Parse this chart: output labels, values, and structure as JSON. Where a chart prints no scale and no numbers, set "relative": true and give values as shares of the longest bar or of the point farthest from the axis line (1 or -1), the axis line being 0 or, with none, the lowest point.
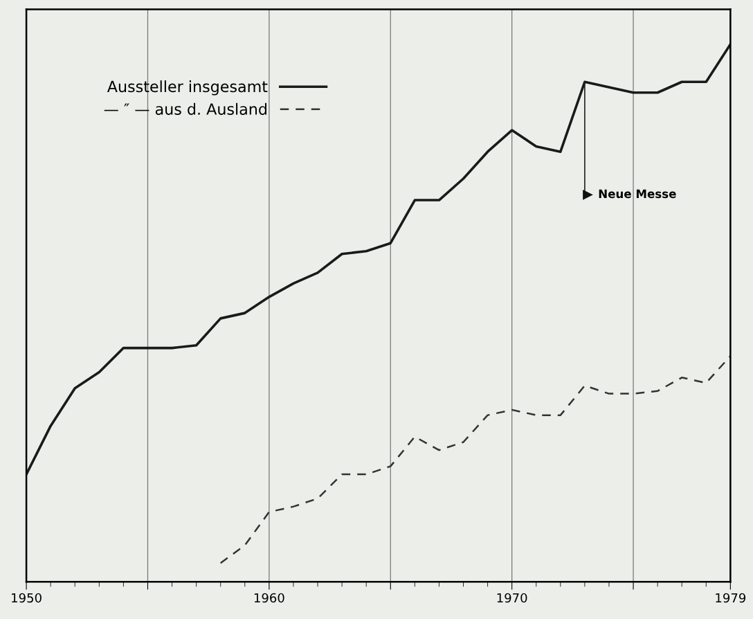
{
  "chart_data": {
    "type": "line",
    "relative": true,
    "x": [
      1950,
      1951,
      1952,
      1953,
      1954,
      1955,
      1956,
      1957,
      1958,
      1959,
      1960,
      1961,
      1962,
      1963,
      1964,
      1965,
      1966,
      1967,
      1968,
      1969,
      1970,
      1971,
      1972,
      1973,
      1974,
      1975,
      1976,
      1977,
      1978,
      1979
    ],
    "series": [
      {
        "name": "Aussteller insgesamt",
        "color": "#1a1a1a",
        "line_style": "solid",
        "values": [
          0.2,
          0.29,
          0.36,
          0.39,
          0.435,
          0.435,
          0.435,
          0.44,
          0.49,
          0.5,
          0.53,
          0.555,
          0.575,
          0.61,
          0.615,
          0.63,
          0.71,
          0.71,
          0.75,
          0.8,
          0.84,
          0.81,
          0.8,
          0.93,
          0.92,
          0.91,
          0.91,
          0.93,
          0.93,
          1.0
        ]
      },
      {
        "name": "— ″ — aus d. Ausland",
        "color": "#333333",
        "line_style": "dashed",
        "values": [
          null,
          null,
          null,
          null,
          null,
          null,
          null,
          null,
          0.035,
          0.068,
          0.13,
          0.14,
          0.155,
          0.2,
          0.2,
          0.215,
          0.27,
          0.245,
          0.26,
          0.31,
          0.32,
          0.31,
          0.31,
          0.365,
          0.35,
          0.35,
          0.355,
          0.38,
          0.37,
          0.42
        ]
      }
    ],
    "xlim": [
      1950,
      1979
    ],
    "xticks": [
      1950,
      {
        "value": 1955,
        "label": null
      },
      1960,
      {
        "value": 1965,
        "label": null
      },
      1970,
      {
        "value": 1975,
        "label": null
      },
      1979
    ],
    "tick_labels": "x",
    "grid": "x",
    "legend": "top left",
    "marker": "none",
    "annotations": [
      {
        "text": "Neue Messe",
        "x": 1973,
        "y": 0.93
      }
    ]
  }
}
